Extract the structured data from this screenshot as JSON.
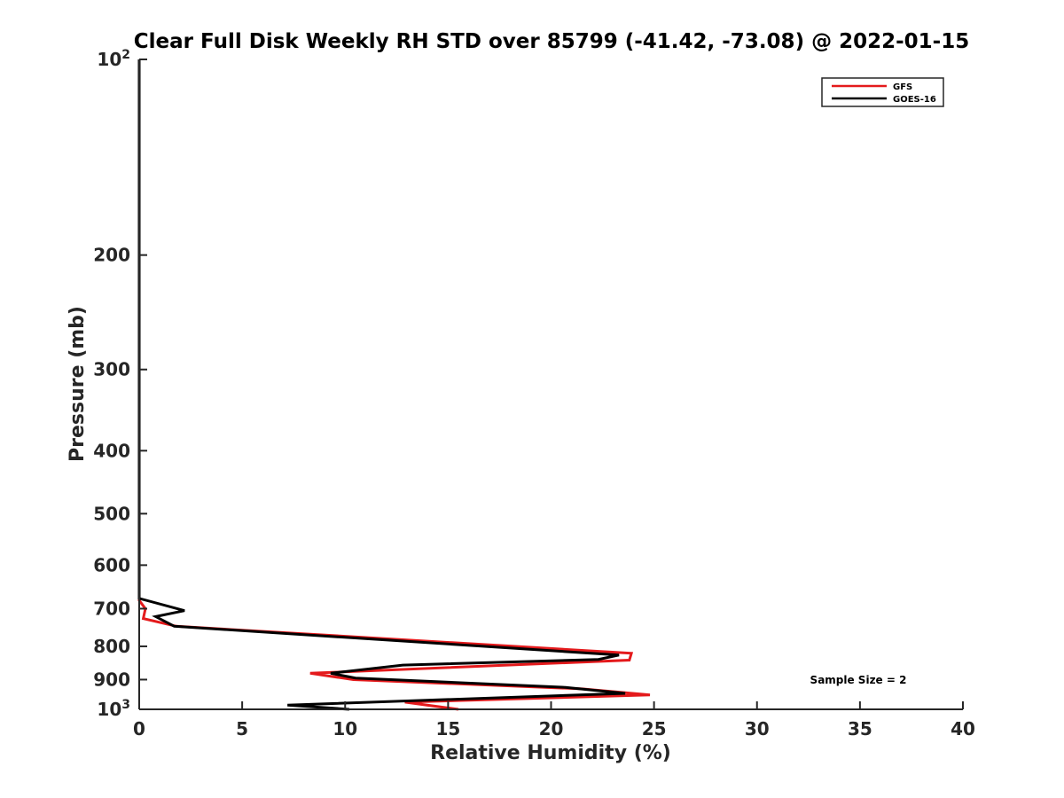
{
  "chart_data": {
    "type": "line",
    "title": "Clear Full Disk Weekly RH STD over 85799 (-41.42, -73.08) @ 2022-01-15",
    "xlabel": "Relative Humidity (%)",
    "ylabel": "Pressure (mb)",
    "xlim": [
      0,
      40
    ],
    "ylim": [
      100,
      1000
    ],
    "y_scale": "log",
    "y_reversed": true,
    "grid": false,
    "legend_position": "top-right",
    "x_ticks": [
      {
        "value": 0,
        "label": "0"
      },
      {
        "value": 5,
        "label": "5"
      },
      {
        "value": 10,
        "label": "10"
      },
      {
        "value": 15,
        "label": "15"
      },
      {
        "value": 20,
        "label": "20"
      },
      {
        "value": 25,
        "label": "25"
      },
      {
        "value": 30,
        "label": "30"
      },
      {
        "value": 35,
        "label": "35"
      },
      {
        "value": 40,
        "label": "40"
      }
    ],
    "y_ticks": [
      {
        "value": 100,
        "label": "10",
        "exponent": "2"
      },
      {
        "value": 200,
        "label": "200",
        "exponent": ""
      },
      {
        "value": 300,
        "label": "300",
        "exponent": ""
      },
      {
        "value": 400,
        "label": "400",
        "exponent": ""
      },
      {
        "value": 500,
        "label": "500",
        "exponent": ""
      },
      {
        "value": 600,
        "label": "600",
        "exponent": ""
      },
      {
        "value": 700,
        "label": "700",
        "exponent": ""
      },
      {
        "value": 800,
        "label": "800",
        "exponent": ""
      },
      {
        "value": 900,
        "label": "900",
        "exponent": ""
      },
      {
        "value": 1000,
        "label": "10",
        "exponent": "3"
      }
    ],
    "series": [
      {
        "name": "GFS",
        "color": "#e41a1c",
        "points": [
          {
            "x": 0,
            "y": 100
          },
          {
            "x": 0,
            "y": 680
          },
          {
            "x": 0.3,
            "y": 700
          },
          {
            "x": 0.2,
            "y": 725
          },
          {
            "x": 1.8,
            "y": 745
          },
          {
            "x": 23.9,
            "y": 820
          },
          {
            "x": 23.8,
            "y": 840
          },
          {
            "x": 8.3,
            "y": 880
          },
          {
            "x": 10.4,
            "y": 900
          },
          {
            "x": 21.5,
            "y": 930
          },
          {
            "x": 24.8,
            "y": 950
          },
          {
            "x": 12.9,
            "y": 975
          },
          {
            "x": 15.5,
            "y": 1000
          }
        ]
      },
      {
        "name": "GOES-16",
        "color": "#000000",
        "points": [
          {
            "x": 0,
            "y": 100
          },
          {
            "x": 0,
            "y": 675
          },
          {
            "x": 2.2,
            "y": 705
          },
          {
            "x": 0.8,
            "y": 720
          },
          {
            "x": 1.7,
            "y": 745
          },
          {
            "x": 23.3,
            "y": 825
          },
          {
            "x": 22.3,
            "y": 838
          },
          {
            "x": 12.8,
            "y": 855
          },
          {
            "x": 9.3,
            "y": 880
          },
          {
            "x": 10.5,
            "y": 895
          },
          {
            "x": 20.7,
            "y": 925
          },
          {
            "x": 23.6,
            "y": 945
          },
          {
            "x": 7.2,
            "y": 985
          },
          {
            "x": 10.2,
            "y": 1000
          }
        ]
      }
    ],
    "annotation": "Sample Size = 2"
  }
}
